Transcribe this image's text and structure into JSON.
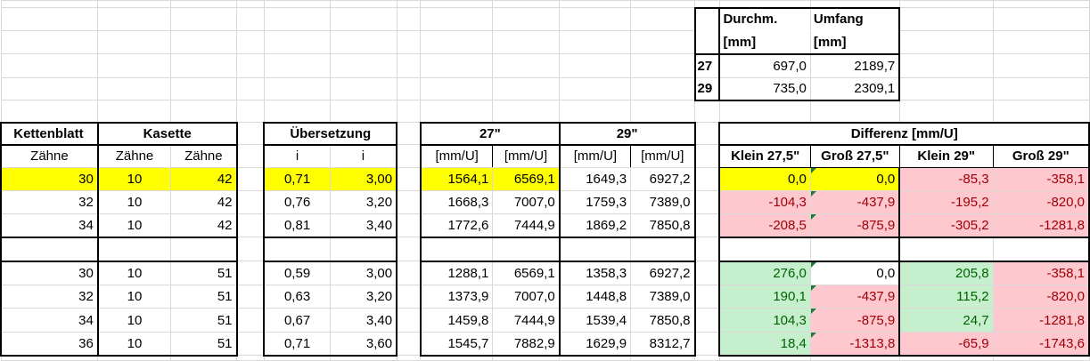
{
  "wheel_table": {
    "headers": [
      [
        "Durchm.",
        "[mm]"
      ],
      [
        "Umfang",
        "[mm]"
      ]
    ],
    "rows": [
      {
        "size": "27",
        "diameter": "697,0",
        "circumference": "2189,7"
      },
      {
        "size": "29",
        "diameter": "735,0",
        "circumference": "2309,1"
      }
    ]
  },
  "headers": {
    "kettenblatt": "Kettenblatt",
    "kasette": "Kasette",
    "uebersetzung": "Übersetzung",
    "w27": "27\"",
    "w29": "29\"",
    "differenz": "Differenz [mm/U]",
    "sub": [
      "Zähne",
      "Zähne",
      "Zähne",
      "i",
      "i",
      "[mm/U]",
      "[mm/U]",
      "[mm/U]",
      "[mm/U]",
      "Klein 27,5\"",
      "Groß 27,5\"",
      "Klein 29\"",
      "Groß 29\""
    ]
  },
  "colors": {
    "highlight": "#ffff00",
    "negative_bg": "#ffc7ce",
    "negative_text": "#9c0006",
    "positive_bg": "#c6efce",
    "positive_text": "#006100"
  },
  "groups": [
    {
      "rows": [
        {
          "highlight": true,
          "kb": "30",
          "k1": "10",
          "k2": "42",
          "i1": "0,71",
          "i2": "3,00",
          "a27": "1564,1",
          "b27": "6569,1",
          "a29": "1649,3",
          "b29": "6927,2",
          "diff": [
            "0,0",
            "0,0",
            "-85,3",
            "-358,1"
          ],
          "diff_format": [
            "yellow",
            "yellow",
            "bad",
            "bad"
          ]
        },
        {
          "highlight": false,
          "kb": "32",
          "k1": "10",
          "k2": "42",
          "i1": "0,76",
          "i2": "3,20",
          "a27": "1668,3",
          "b27": "7007,0",
          "a29": "1759,3",
          "b29": "7389,0",
          "diff": [
            "-104,3",
            "-437,9",
            "-195,2",
            "-820,0"
          ],
          "diff_format": [
            "bad",
            "bad",
            "bad",
            "bad"
          ]
        },
        {
          "highlight": false,
          "kb": "34",
          "k1": "10",
          "k2": "42",
          "i1": "0,81",
          "i2": "3,40",
          "a27": "1772,6",
          "b27": "7444,9",
          "a29": "1869,2",
          "b29": "7850,8",
          "diff": [
            "-208,5",
            "-875,9",
            "-305,2",
            "-1281,8"
          ],
          "diff_format": [
            "bad",
            "bad",
            "bad",
            "bad"
          ]
        }
      ]
    },
    {
      "rows": [
        {
          "highlight": false,
          "kb": "30",
          "k1": "10",
          "k2": "51",
          "i1": "0,59",
          "i2": "3,00",
          "a27": "1288,1",
          "b27": "6569,1",
          "a29": "1358,3",
          "b29": "6927,2",
          "diff": [
            "276,0",
            "0,0",
            "205,8",
            "-358,1"
          ],
          "diff_format": [
            "good",
            "none",
            "good",
            "bad"
          ]
        },
        {
          "highlight": false,
          "kb": "32",
          "k1": "10",
          "k2": "51",
          "i1": "0,63",
          "i2": "3,20",
          "a27": "1373,9",
          "b27": "7007,0",
          "a29": "1448,8",
          "b29": "7389,0",
          "diff": [
            "190,1",
            "-437,9",
            "115,2",
            "-820,0"
          ],
          "diff_format": [
            "good",
            "bad",
            "good",
            "bad"
          ]
        },
        {
          "highlight": false,
          "kb": "34",
          "k1": "10",
          "k2": "51",
          "i1": "0,67",
          "i2": "3,40",
          "a27": "1459,8",
          "b27": "7444,9",
          "a29": "1539,4",
          "b29": "7850,8",
          "diff": [
            "104,3",
            "-875,9",
            "24,7",
            "-1281,8"
          ],
          "diff_format": [
            "good",
            "bad",
            "good",
            "bad"
          ]
        },
        {
          "highlight": false,
          "kb": "36",
          "k1": "10",
          "k2": "51",
          "i1": "0,71",
          "i2": "3,60",
          "a27": "1545,7",
          "b27": "7882,9",
          "a29": "1629,9",
          "b29": "8312,7",
          "diff": [
            "18,4",
            "-1313,8",
            "-65,9",
            "-1743,6"
          ],
          "diff_format": [
            "good",
            "bad",
            "bad",
            "bad"
          ]
        }
      ]
    }
  ]
}
